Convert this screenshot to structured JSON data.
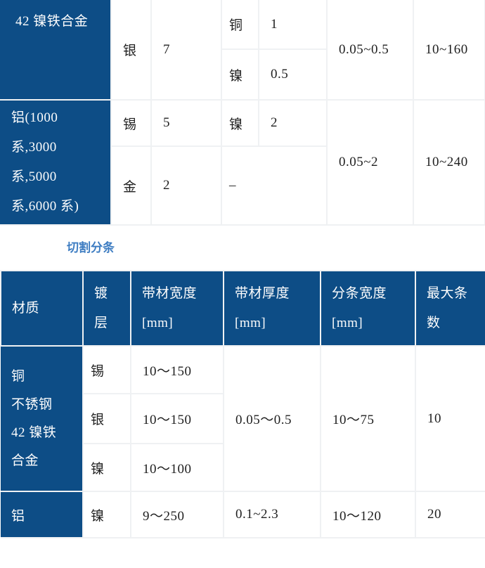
{
  "accent_color": "#0d4d86",
  "heading": {
    "text": "切割分条",
    "color": "#3e7dc2"
  },
  "top_table": {
    "group1": {
      "material": "42 镍铁合金",
      "plating_name": "银",
      "plating_value": "7",
      "sub1_name": "铜",
      "sub1_value": "1",
      "sub2_name": "镍",
      "sub2_value": "0.5",
      "thickness_range": "0.05~0.5",
      "width_range": "10~160"
    },
    "group2": {
      "material_lines": [
        "铝(1000",
        "系,3000",
        "系,5000",
        "系,6000 系)"
      ],
      "row1": {
        "plating_name": "锡",
        "plating_value": "5",
        "sub_name": "镍",
        "sub_value": "2"
      },
      "row2": {
        "plating_name": "金",
        "plating_value": "2",
        "sub_merged": "–"
      },
      "thickness_range": "0.05~2",
      "width_range": "10~240"
    }
  },
  "slitting_table": {
    "headers": {
      "material": [
        "材质"
      ],
      "plating": [
        "镀",
        "层"
      ],
      "strip_width": [
        "带材宽度",
        "[mm]"
      ],
      "strip_thickness": [
        "带材厚度",
        "[mm]"
      ],
      "slit_width": [
        "分条宽度",
        "[mm]"
      ],
      "max_strips": [
        "最大条",
        "数"
      ]
    },
    "group1": {
      "material_lines": [
        "铜",
        "不锈钢",
        "42 镍铁",
        "合金"
      ],
      "rows": [
        {
          "plating": "锡",
          "strip_width": "10～150"
        },
        {
          "plating": "银",
          "strip_width": "10～150"
        },
        {
          "plating": "镍",
          "strip_width": "10～100"
        }
      ],
      "strip_thickness": "0.05～0.5",
      "slit_width": "10～75",
      "max_strips": "10"
    },
    "group2": {
      "material": "铝",
      "plating": "镍",
      "strip_width": "9～250",
      "strip_thickness": "0.1~2.3",
      "slit_width": "10～120",
      "max_strips": "20"
    }
  }
}
